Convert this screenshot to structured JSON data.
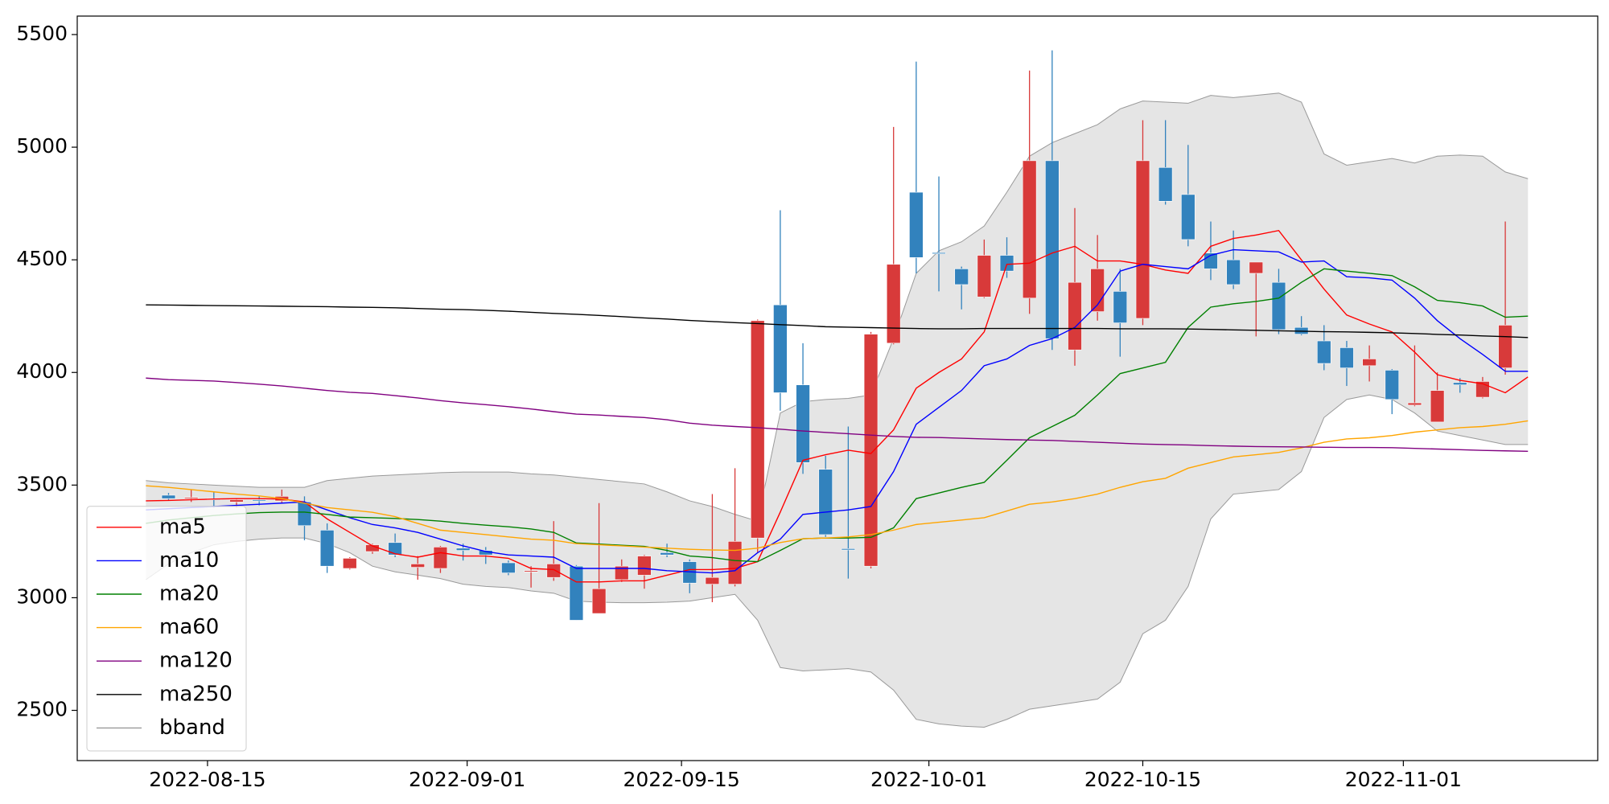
{
  "chart_data": {
    "type": "candlestick",
    "xlim": [
      -3.03,
      64.08
    ],
    "xticks": [
      {
        "value": 2.72,
        "label": "2022-08-15"
      },
      {
        "value": 14.18,
        "label": "2022-09-01"
      },
      {
        "value": 23.64,
        "label": "2022-09-15"
      },
      {
        "value": 34.56,
        "label": "2022-10-01"
      },
      {
        "value": 44,
        "label": "2022-10-15"
      },
      {
        "value": 55.5,
        "label": "2022-11-01"
      }
    ],
    "ylim": [
      2277,
      5582
    ],
    "yticks": [
      2500,
      3000,
      3500,
      4000,
      4500,
      5000,
      5500
    ],
    "grid": false,
    "legend": "lower left",
    "candles": {
      "up_color": "#d83a3a",
      "down_color": "#3282bd",
      "x": [
        1,
        2,
        3,
        4,
        5,
        6,
        7,
        8,
        9,
        10,
        11,
        12,
        13,
        14,
        15,
        16,
        17,
        18,
        19,
        20,
        21,
        22,
        23,
        24,
        25,
        26,
        27,
        28,
        29,
        30,
        31,
        32,
        33,
        34,
        35,
        36,
        37,
        38,
        39,
        40,
        41,
        42,
        43,
        44,
        45,
        46,
        47,
        48,
        49,
        50,
        51,
        52,
        53,
        54,
        55,
        56,
        57,
        58,
        59,
        60
      ],
      "open": [
        3455,
        3440,
        3440,
        3425,
        3435,
        3430,
        3425,
        3300,
        3130,
        3205,
        3245,
        3135,
        3130,
        3220,
        3210,
        3155,
        3115,
        3090,
        3140,
        2930,
        3080,
        3100,
        3200,
        3160,
        3060,
        3060,
        3265,
        4300,
        3945,
        3570,
        3218,
        3140,
        4130,
        4800,
        4532,
        4460,
        4335,
        4520,
        4330,
        4940,
        4100,
        4270,
        4360,
        4240,
        4910,
        4790,
        4530,
        4500,
        4440,
        4400,
        4200,
        4140,
        4110,
        4030,
        4010,
        3855,
        3780,
        3955,
        3890,
        4020
      ],
      "high": [
        3465,
        3480,
        3470,
        3440,
        3450,
        3480,
        3450,
        3330,
        3180,
        3240,
        3285,
        3185,
        3230,
        3240,
        3225,
        3165,
        3140,
        3340,
        3145,
        3420,
        3170,
        3190,
        3240,
        3170,
        3460,
        3575,
        4235,
        4720,
        4130,
        3630,
        3760,
        4180,
        5090,
        5380,
        4870,
        4470,
        4590,
        4600,
        5340,
        5430,
        4730,
        4610,
        4460,
        5120,
        5120,
        5010,
        4670,
        4630,
        4490,
        4460,
        4250,
        4210,
        4140,
        4120,
        4015,
        4120,
        4000,
        3975,
        3980,
        4670
      ],
      "low": [
        3430,
        3425,
        3400,
        3400,
        3410,
        3420,
        3255,
        3110,
        3125,
        3195,
        3180,
        3080,
        3110,
        3165,
        3150,
        3100,
        3045,
        3075,
        2900,
        2930,
        3070,
        3040,
        3180,
        3020,
        2980,
        3050,
        3200,
        3830,
        3550,
        3270,
        3085,
        3130,
        4125,
        4440,
        4360,
        4280,
        4330,
        4420,
        4260,
        4100,
        4030,
        4230,
        4070,
        4210,
        4745,
        4560,
        4410,
        4370,
        4160,
        4170,
        4165,
        4010,
        3940,
        3960,
        3815,
        3850,
        3780,
        3910,
        3885,
        3990
      ],
      "close": [
        3440,
        3445,
        3435,
        3435,
        3430,
        3450,
        3320,
        3140,
        3175,
        3235,
        3190,
        3150,
        3225,
        3210,
        3190,
        3110,
        3120,
        3150,
        2900,
        3040,
        3140,
        3185,
        3190,
        3065,
        3090,
        3250,
        4230,
        3910,
        3600,
        3280,
        3212,
        4170,
        4480,
        4510,
        4528,
        4390,
        4520,
        4450,
        4940,
        4150,
        4400,
        4460,
        4220,
        4940,
        4760,
        4590,
        4460,
        4390,
        4490,
        4190,
        4170,
        4040,
        4020,
        4060,
        3880,
        3865,
        3920,
        3945,
        3960,
        4210
      ]
    },
    "x": [
      0,
      1,
      2,
      3,
      4,
      5,
      6,
      7,
      8,
      9,
      10,
      11,
      12,
      13,
      14,
      15,
      16,
      17,
      18,
      19,
      20,
      21,
      22,
      23,
      24,
      25,
      26,
      27,
      28,
      29,
      30,
      31,
      32,
      33,
      34,
      35,
      36,
      37,
      38,
      39,
      40,
      41,
      42,
      43,
      44,
      45,
      46,
      47,
      48,
      49,
      50,
      51,
      52,
      53,
      54,
      55,
      56,
      57,
      58,
      59,
      60,
      61
    ],
    "series": [
      {
        "name": "ma5",
        "color": "#ff0000",
        "values": [
          3430,
          3432,
          3435,
          3438,
          3440,
          3440,
          3438,
          3425,
          3350,
          3290,
          3230,
          3195,
          3180,
          3200,
          3185,
          3185,
          3175,
          3130,
          3125,
          3070,
          3070,
          3075,
          3075,
          3100,
          3125,
          3125,
          3130,
          3160,
          3380,
          3610,
          3635,
          3655,
          3640,
          3745,
          3930,
          4000,
          4060,
          4180,
          4480,
          4485,
          4530,
          4560,
          4495,
          4495,
          4480,
          4455,
          4440,
          4560,
          4595,
          4610,
          4630,
          4500,
          4370,
          4255,
          4215,
          4180,
          4090,
          3990,
          3965,
          3950,
          3910,
          3980
        ]
      },
      {
        "name": "ma10",
        "color": "#0000ff",
        "values": [
          3390,
          3395,
          3400,
          3405,
          3410,
          3415,
          3420,
          3425,
          3390,
          3355,
          3325,
          3310,
          3290,
          3260,
          3230,
          3205,
          3190,
          3185,
          3180,
          3130,
          3130,
          3130,
          3130,
          3120,
          3115,
          3110,
          3120,
          3200,
          3260,
          3370,
          3380,
          3390,
          3405,
          3560,
          3770,
          3845,
          3920,
          4030,
          4060,
          4120,
          4150,
          4200,
          4300,
          4450,
          4480,
          4470,
          4460,
          4520,
          4545,
          4540,
          4535,
          4490,
          4495,
          4425,
          4420,
          4410,
          4330,
          4230,
          4150,
          4080,
          4005,
          4005
        ]
      },
      {
        "name": "ma20",
        "color": "#008000",
        "values": [
          3330,
          3345,
          3355,
          3365,
          3372,
          3378,
          3380,
          3380,
          3370,
          3358,
          3355,
          3352,
          3347,
          3340,
          3330,
          3322,
          3315,
          3305,
          3290,
          3243,
          3238,
          3233,
          3228,
          3210,
          3185,
          3178,
          3165,
          3160,
          3210,
          3262,
          3265,
          3265,
          3268,
          3310,
          3440,
          3465,
          3490,
          3512,
          3610,
          3710,
          3760,
          3810,
          3900,
          3995,
          4020,
          4045,
          4200,
          4290,
          4305,
          4315,
          4330,
          4400,
          4460,
          4450,
          4440,
          4430,
          4380,
          4320,
          4310,
          4295,
          4245,
          4250
        ]
      },
      {
        "name": "ma60",
        "color": "#ffa500",
        "values": [
          3497,
          3490,
          3480,
          3470,
          3460,
          3452,
          3440,
          3420,
          3400,
          3390,
          3379,
          3360,
          3330,
          3300,
          3290,
          3280,
          3270,
          3260,
          3255,
          3240,
          3235,
          3230,
          3225,
          3220,
          3215,
          3212,
          3210,
          3220,
          3245,
          3262,
          3265,
          3270,
          3280,
          3300,
          3325,
          3335,
          3345,
          3355,
          3385,
          3415,
          3425,
          3440,
          3460,
          3490,
          3515,
          3530,
          3575,
          3600,
          3625,
          3635,
          3645,
          3665,
          3690,
          3705,
          3710,
          3720,
          3735,
          3745,
          3755,
          3760,
          3770,
          3785
        ]
      },
      {
        "name": "ma120",
        "color": "#800080",
        "values": [
          3975,
          3968,
          3965,
          3962,
          3955,
          3948,
          3940,
          3930,
          3920,
          3912,
          3907,
          3897,
          3887,
          3875,
          3865,
          3857,
          3848,
          3838,
          3826,
          3815,
          3811,
          3805,
          3800,
          3790,
          3775,
          3766,
          3760,
          3755,
          3748,
          3740,
          3734,
          3728,
          3722,
          3716,
          3712,
          3711,
          3708,
          3705,
          3702,
          3700,
          3698,
          3694,
          3690,
          3686,
          3682,
          3680,
          3678,
          3675,
          3673,
          3671,
          3670,
          3669,
          3668,
          3667,
          3667,
          3666,
          3663,
          3660,
          3657,
          3654,
          3652,
          3650
        ]
      },
      {
        "name": "ma250",
        "color": "#000000",
        "values": [
          4300,
          4299,
          4298,
          4297,
          4296,
          4295,
          4294,
          4293,
          4292,
          4290,
          4289,
          4287,
          4284,
          4281,
          4279,
          4276,
          4272,
          4267,
          4262,
          4258,
          4253,
          4248,
          4242,
          4237,
          4231,
          4226,
          4221,
          4217,
          4212,
          4208,
          4203,
          4201,
          4199,
          4197,
          4195,
          4194,
          4194,
          4195,
          4195,
          4195,
          4195,
          4195,
          4195,
          4194,
          4194,
          4194,
          4193,
          4191,
          4189,
          4187,
          4185,
          4183,
          4181,
          4180,
          4178,
          4176,
          4173,
          4169,
          4166,
          4162,
          4159,
          4155
        ]
      }
    ],
    "band": {
      "name": "bband",
      "color": "#999999",
      "fill": "#e5e5e5",
      "upper": [
        3520,
        3510,
        3505,
        3500,
        3495,
        3490,
        3490,
        3490,
        3520,
        3530,
        3540,
        3545,
        3550,
        3555,
        3558,
        3558,
        3558,
        3550,
        3545,
        3535,
        3525,
        3515,
        3505,
        3470,
        3430,
        3405,
        3370,
        3340,
        3820,
        3870,
        3880,
        3885,
        3900,
        4150,
        4440,
        4540,
        4580,
        4650,
        4800,
        4960,
        5020,
        5060,
        5100,
        5170,
        5205,
        5200,
        5195,
        5230,
        5220,
        5230,
        5240,
        5200,
        4970,
        4920,
        4935,
        4950,
        4930,
        4960,
        4965,
        4960,
        4890,
        4860
      ],
      "lower": [
        3080,
        3150,
        3200,
        3235,
        3250,
        3260,
        3265,
        3265,
        3240,
        3200,
        3140,
        3115,
        3100,
        3085,
        3060,
        3050,
        3045,
        3030,
        3020,
        2985,
        2980,
        2978,
        2978,
        2980,
        2985,
        3000,
        3015,
        2900,
        2690,
        2675,
        2680,
        2685,
        2670,
        2590,
        2460,
        2440,
        2430,
        2425,
        2460,
        2505,
        2520,
        2535,
        2550,
        2625,
        2840,
        2900,
        3050,
        3350,
        3460,
        3470,
        3480,
        3560,
        3800,
        3880,
        3900,
        3880,
        3820,
        3740,
        3720,
        3700,
        3680,
        3680
      ]
    }
  }
}
